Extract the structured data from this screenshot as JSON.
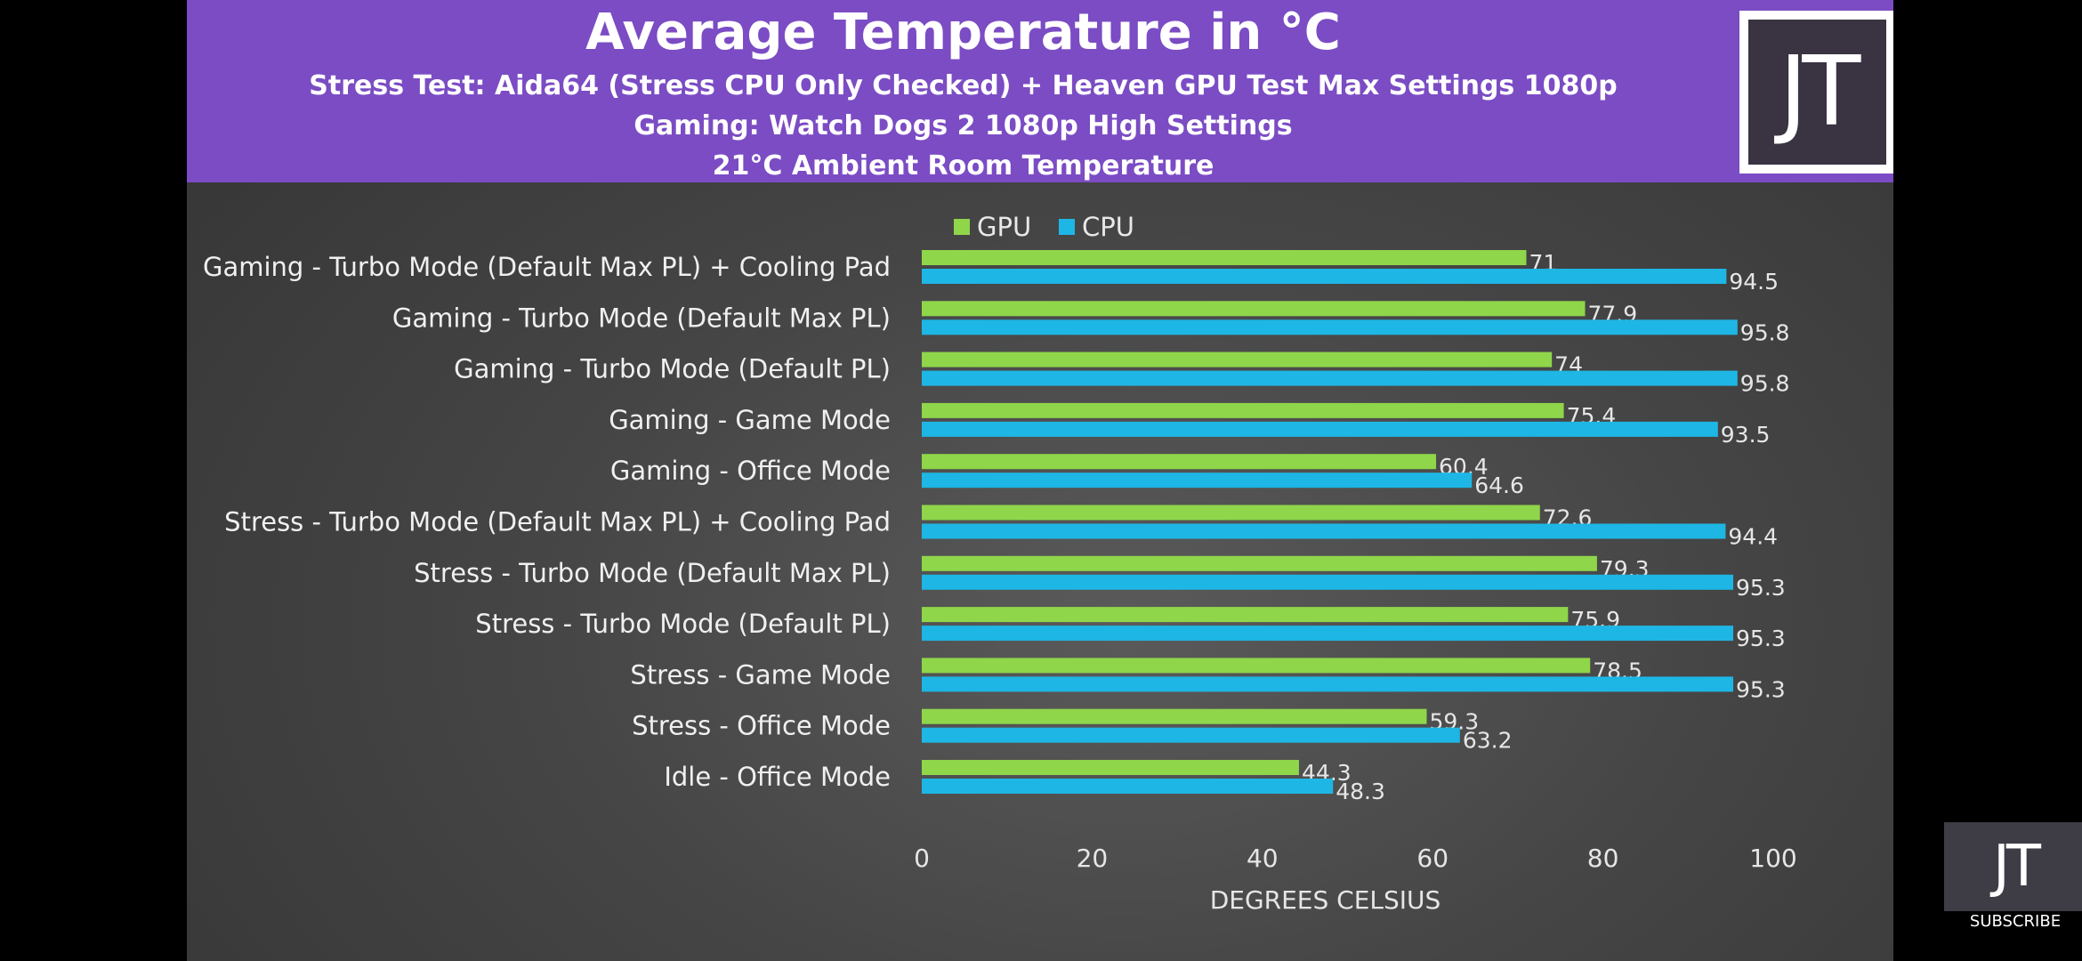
{
  "header": {
    "title": "Average Temperature in °C",
    "subtitle_1": "Stress Test: Aida64 (Stress CPU Only Checked) + Heaven GPU Test Max Settings 1080p",
    "subtitle_2": "Gaming: Watch Dogs 2 1080p High Settings",
    "subtitle_3": "21°C Ambient Room Temperature",
    "logo_text": "JT"
  },
  "subscribe": {
    "logo_text": "JT",
    "label": "SUBSCRIBE"
  },
  "chart_data": {
    "type": "bar",
    "orientation": "horizontal",
    "title": "Average Temperature in °C",
    "xlabel": "DEGREES CELSIUS",
    "ylabel": "",
    "xlim": [
      0,
      100
    ],
    "x_ticks": [
      0,
      20,
      40,
      60,
      80,
      100
    ],
    "grid": false,
    "legend_position": "top",
    "categories": [
      "Gaming - Turbo Mode (Default Max PL) + Cooling Pad",
      "Gaming - Turbo Mode (Default Max PL)",
      "Gaming - Turbo Mode (Default PL)",
      "Gaming - Game Mode",
      "Gaming - Office Mode",
      "Stress - Turbo Mode (Default Max PL) + Cooling Pad",
      "Stress - Turbo Mode (Default Max PL)",
      "Stress - Turbo Mode (Default PL)",
      "Stress - Game Mode",
      "Stress - Office Mode",
      "Idle - Office Mode"
    ],
    "series": [
      {
        "name": "GPU",
        "color": "#8fd64a",
        "values": [
          71,
          77.9,
          74,
          75.4,
          60.4,
          72.6,
          79.3,
          75.9,
          78.5,
          59.3,
          44.3
        ]
      },
      {
        "name": "CPU",
        "color": "#1eb6e4",
        "values": [
          94.5,
          95.8,
          95.8,
          93.5,
          64.6,
          94.4,
          95.3,
          95.3,
          95.3,
          63.2,
          48.3
        ]
      }
    ]
  }
}
